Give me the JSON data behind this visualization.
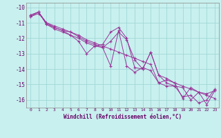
{
  "xlabel": "Windchill (Refroidissement éolien,°C)",
  "bg_color": "#c8f0ee",
  "line_color": "#993399",
  "grid_color": "#a0d8d8",
  "ylim": [
    -16.5,
    -9.7
  ],
  "xlim": [
    -0.5,
    23.5
  ],
  "yticks": [
    -16,
    -15,
    -14,
    -13,
    -12,
    -11,
    -10
  ],
  "xticks": [
    0,
    1,
    2,
    3,
    4,
    5,
    6,
    7,
    8,
    9,
    10,
    11,
    12,
    13,
    14,
    15,
    16,
    17,
    18,
    19,
    20,
    21,
    22,
    23
  ],
  "series": [
    [
      -10.5,
      -10.3,
      -11.1,
      -11.3,
      -11.5,
      -11.8,
      -12.2,
      -13.0,
      -12.5,
      -12.4,
      -11.6,
      -11.3,
      -12.0,
      -13.9,
      -14.0,
      -12.9,
      -14.4,
      -14.9,
      -15.1,
      -15.8,
      -15.7,
      -16.2,
      -16.0,
      -15.3
    ],
    [
      -10.5,
      -10.3,
      -11.1,
      -11.4,
      -11.6,
      -11.8,
      -12.0,
      -12.3,
      -12.5,
      -12.6,
      -13.8,
      -11.5,
      -13.8,
      -14.2,
      -13.9,
      -14.1,
      -14.9,
      -15.1,
      -15.1,
      -15.2,
      -16.0,
      -15.5,
      -16.3,
      -15.4
    ],
    [
      -10.6,
      -10.3,
      -11.0,
      -11.3,
      -11.5,
      -11.6,
      -11.9,
      -12.2,
      -12.4,
      -12.6,
      -12.2,
      -11.6,
      -12.1,
      -13.4,
      -14.0,
      -12.9,
      -14.4,
      -14.6,
      -14.9,
      -15.9,
      -15.2,
      -15.5,
      -15.6,
      -15.4
    ],
    [
      -10.6,
      -10.4,
      -11.0,
      -11.2,
      -11.4,
      -11.6,
      -11.8,
      -12.1,
      -12.3,
      -12.5,
      -12.7,
      -12.9,
      -13.1,
      -13.3,
      -13.5,
      -13.7,
      -14.9,
      -14.7,
      -14.9,
      -15.1,
      -15.3,
      -15.5,
      -15.7,
      -15.9
    ]
  ]
}
